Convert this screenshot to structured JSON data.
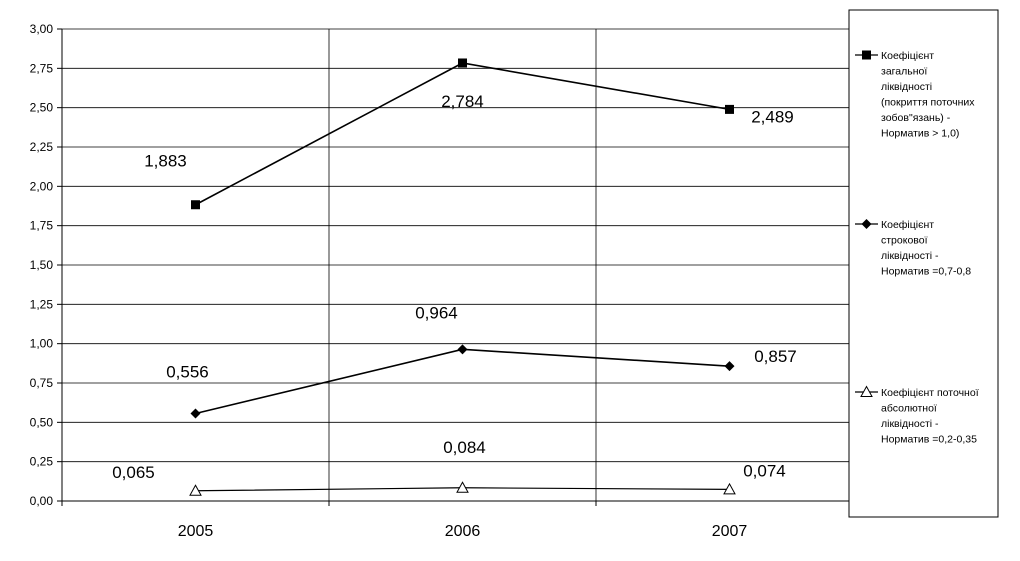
{
  "chart_data": {
    "type": "line",
    "categories": [
      "2005",
      "2006",
      "2007"
    ],
    "ylim": [
      0,
      3
    ],
    "y_ticks": [
      "0,00",
      "0,25",
      "0,50",
      "0,75",
      "1,00",
      "1,25",
      "1,50",
      "1,75",
      "2,00",
      "2,25",
      "2,50",
      "2,75",
      "3,00"
    ],
    "grid": "vertical gridlines between categories",
    "legend_position": "right",
    "series": [
      {
        "name": "Коефіцієнт загальної ліквідності (покриття поточних зобов\"язань) - Норматив > 1,0)",
        "legend_lines": [
          "Коефіцієнт",
          "загальної",
          "ліквідності",
          "(покриття поточних",
          "зобов\"язань) -",
          "Норматив > 1,0)"
        ],
        "marker": "square",
        "values": [
          1.883,
          2.784,
          2.489
        ],
        "labels": [
          "1,883",
          "2,784",
          "2,489"
        ]
      },
      {
        "name": "Коефіцієнт строкової ліквідності - Норматив =0,7-0,8",
        "legend_lines": [
          "Коефіцієнт",
          "строкової",
          "ліквідності -",
          "Норматив =0,7-0,8"
        ],
        "marker": "diamond",
        "values": [
          0.556,
          0.964,
          0.857
        ],
        "labels": [
          "0,556",
          "0,964",
          "0,857"
        ]
      },
      {
        "name": "Коефіцієнт поточної абсолютної ліквідності - Норматив =0,2-0,35",
        "legend_lines": [
          "Коефіцієнт поточної",
          "абсолютної",
          "ліквідності -",
          "Норматив =0,2-0,35"
        ],
        "marker": "triangle-open",
        "values": [
          0.065,
          0.084,
          0.074
        ],
        "labels": [
          "0,065",
          "0,084",
          "0,074"
        ]
      }
    ]
  }
}
